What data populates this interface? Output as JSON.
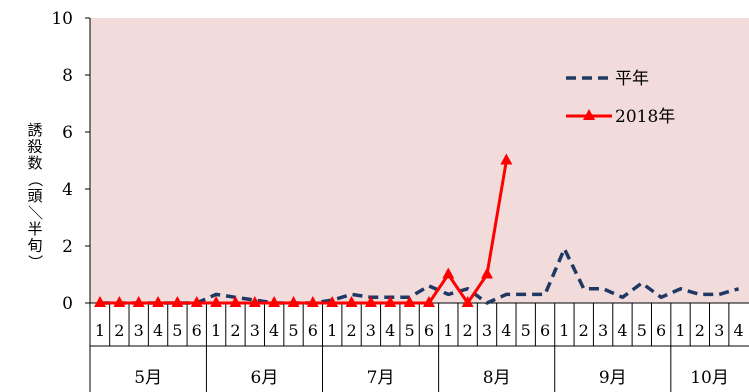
{
  "chart_data": {
    "type": "line",
    "title": "",
    "ylabel": "誘殺数（頭／半旬）",
    "ylim": [
      0,
      10
    ],
    "yticks": [
      0,
      2,
      4,
      6,
      8,
      10
    ],
    "plot_background": "#f2dcdb",
    "grid": false,
    "legend_position": "top-right",
    "months": [
      {
        "label": "5月",
        "pentads": [
          "1",
          "2",
          "3",
          "4",
          "5",
          "6"
        ]
      },
      {
        "label": "6月",
        "pentads": [
          "1",
          "2",
          "3",
          "4",
          "5",
          "6"
        ]
      },
      {
        "label": "7月",
        "pentads": [
          "1",
          "2",
          "3",
          "4",
          "5",
          "6"
        ]
      },
      {
        "label": "8月",
        "pentads": [
          "1",
          "2",
          "3",
          "4",
          "5",
          "6"
        ]
      },
      {
        "label": "9月",
        "pentads": [
          "1",
          "2",
          "3",
          "4",
          "5",
          "6"
        ]
      },
      {
        "label": "10月",
        "pentads": [
          "1",
          "2",
          "3",
          "4"
        ]
      }
    ],
    "series": [
      {
        "name": "平年",
        "color": "#1f3864",
        "style": "dashed",
        "marker": "none",
        "values": [
          0,
          0,
          0,
          0,
          0,
          0,
          0.3,
          0.2,
          0.1,
          0,
          0,
          0,
          0.1,
          0.3,
          0.2,
          0.2,
          0.2,
          0.6,
          0.3,
          0.5,
          0,
          0.3,
          0.3,
          0.3,
          1.9,
          0.5,
          0.5,
          0.2,
          0.7,
          0.2,
          0.5,
          0.3,
          0.3,
          0.5
        ]
      },
      {
        "name": "2018年",
        "color": "#ff0000",
        "style": "solid",
        "marker": "triangle",
        "values": [
          0,
          0,
          0,
          0,
          0,
          0,
          0,
          0,
          0,
          0,
          0,
          0,
          0,
          0,
          0,
          0,
          0,
          0,
          1,
          0,
          1,
          5
        ]
      }
    ]
  }
}
